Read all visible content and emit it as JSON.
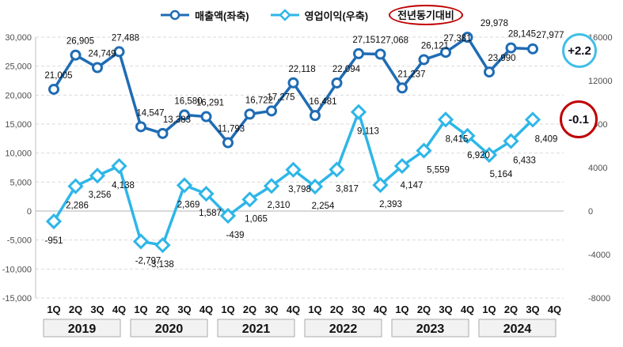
{
  "legend": {
    "revenue": "매출액(좌축)",
    "profit": "영업이익(우축)",
    "yoy": "전년동기대비"
  },
  "badges": {
    "revenue_yoy": "+2.2",
    "profit_yoy": "-0.1"
  },
  "colors": {
    "revenue": "#1F6CB4",
    "profit": "#2EB6E8",
    "badge_blue": "#3FBEE8",
    "badge_red": "#C00000",
    "grid": "#D9D9D9",
    "zero_line": "#B3B3B3",
    "axis_line": "#BFBFBF",
    "axis_text": "#4D4D4D",
    "label_text": "#0d0d0d",
    "year_box_fill": "#F2F2F2",
    "year_box_border": "#ABABAB"
  },
  "chart_data": {
    "type": "line",
    "title": "",
    "quarters": [
      "1Q",
      "2Q",
      "3Q",
      "4Q",
      "1Q",
      "2Q",
      "3Q",
      "4Q",
      "1Q",
      "2Q",
      "3Q",
      "4Q",
      "1Q",
      "2Q",
      "3Q",
      "4Q",
      "1Q",
      "2Q",
      "3Q",
      "4Q",
      "1Q",
      "2Q",
      "3Q",
      "4Q"
    ],
    "years": [
      "2019",
      "2020",
      "2021",
      "2022",
      "2023",
      "2024"
    ],
    "left_axis": {
      "min": -15000,
      "max": 30000,
      "step": 5000,
      "tick_values": [
        30000,
        25000,
        20000,
        15000,
        10000,
        5000,
        0,
        -5000,
        -10000,
        -15000
      ]
    },
    "right_axis": {
      "min": -8000,
      "max": 16000,
      "step": 4000,
      "tick_values": [
        16000,
        12000,
        8000,
        4000,
        0,
        -4000,
        -8000
      ]
    },
    "grid": true,
    "legend_position": "top",
    "series": [
      {
        "name": "매출액(좌축)",
        "axis": "left",
        "marker": "circle",
        "color": "#1F6CB4",
        "values": [
          21005,
          26905,
          24749,
          27488,
          14547,
          13383,
          16580,
          16291,
          11793,
          16722,
          17275,
          22118,
          16481,
          22094,
          27151,
          27068,
          21237,
          26121,
          27381,
          29978,
          23990,
          28145,
          27977
        ],
        "label_dx": [
          6,
          6,
          6,
          8,
          12,
          18,
          5,
          5,
          4,
          12,
          12,
          11,
          10,
          12,
          10,
          18,
          12,
          14,
          15,
          34,
          16,
          14,
          22
        ],
        "label_dy": -14
      },
      {
        "name": "영업이익(우축)",
        "axis": "right",
        "marker": "diamond",
        "color": "#2EB6E8",
        "values": [
          -951,
          2286,
          3256,
          4138,
          -2797,
          -3138,
          2369,
          1587,
          -439,
          1065,
          2310,
          3798,
          2254,
          3817,
          9113,
          2393,
          4147,
          5559,
          8415,
          6920,
          5164,
          6433,
          8409
        ],
        "label_dx": [
          0,
          2,
          3,
          5,
          9,
          -2,
          5,
          5,
          9,
          8,
          9,
          8,
          10,
          13,
          12,
          13,
          12,
          18,
          14,
          14,
          15,
          17,
          17
        ],
        "label_dy": 28
      }
    ],
    "annotations": {
      "yoy_label": "전년동기대비",
      "revenue_yoy": "+2.2",
      "profit_yoy": "-0.1"
    }
  }
}
